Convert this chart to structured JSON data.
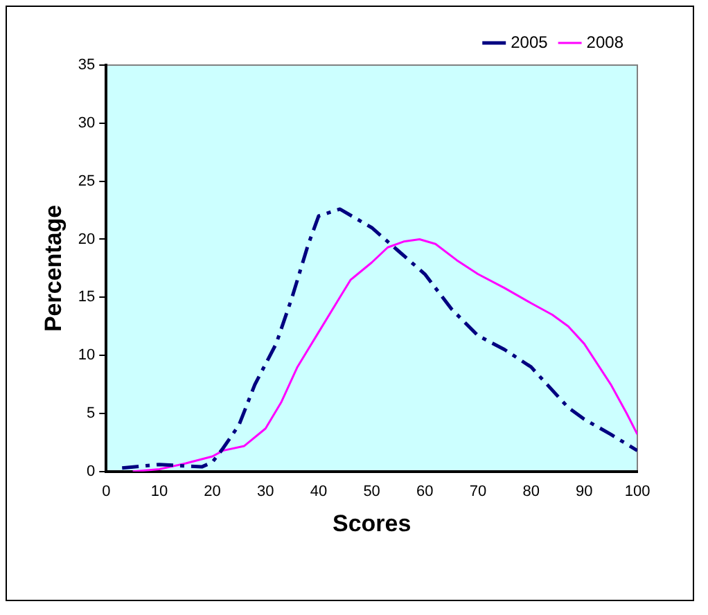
{
  "chart_data": {
    "type": "line",
    "xlabel": "Scores",
    "ylabel": "Percentage",
    "xlim": [
      0,
      100
    ],
    "xticks": [
      0,
      10,
      20,
      30,
      40,
      50,
      60,
      70,
      80,
      90,
      100
    ],
    "ylim": [
      0,
      35
    ],
    "yticks": [
      0,
      5,
      10,
      15,
      20,
      25,
      30,
      35
    ],
    "grid": false,
    "legend": "top right",
    "marker": "none",
    "series": [
      {
        "name": "2005",
        "color": "#000080",
        "line_style": "dashed",
        "x": [
          3,
          10,
          14,
          18,
          20,
          22,
          25,
          28,
          32,
          35,
          38,
          40,
          44,
          50,
          55,
          60,
          65,
          70,
          75,
          80,
          87,
          90,
          95,
          100
        ],
        "values": [
          0.3,
          0.6,
          0.5,
          0.4,
          0.8,
          2,
          4,
          7.5,
          11,
          15,
          19.5,
          22,
          22.6,
          21,
          19,
          17,
          14,
          11.7,
          10.5,
          9,
          5.5,
          4.5,
          3.2,
          1.8
        ]
      },
      {
        "name": "2008",
        "color": "#ff00ff",
        "line_style": "solid",
        "x": [
          5,
          10,
          15,
          20,
          22,
          26,
          30,
          33,
          36,
          40,
          44,
          46,
          50,
          53,
          56,
          59,
          62,
          66,
          70,
          75,
          80,
          84,
          87,
          90,
          95,
          98,
          100
        ],
        "values": [
          0,
          0.2,
          0.7,
          1.3,
          1.8,
          2.2,
          3.7,
          6,
          9,
          12,
          15,
          16.5,
          18,
          19.3,
          19.8,
          20,
          19.6,
          18.2,
          17,
          15.8,
          14.5,
          13.5,
          12.5,
          11,
          7.5,
          5,
          3.2
        ]
      }
    ]
  }
}
